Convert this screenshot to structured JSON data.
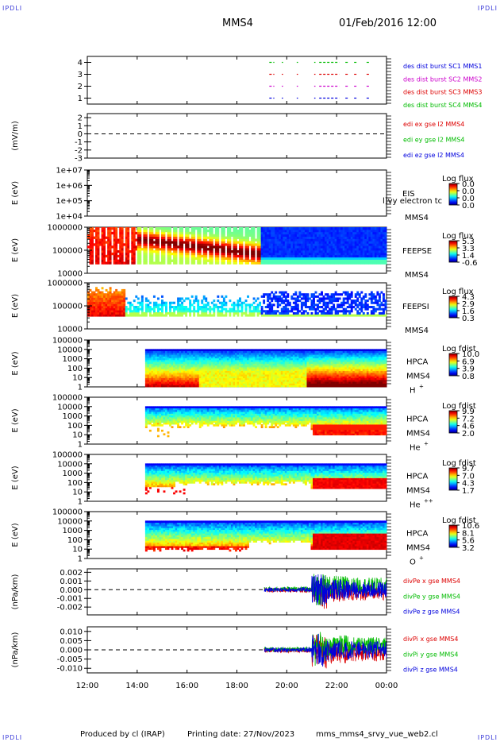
{
  "header": {
    "corner_label": "IPDLI",
    "spacecraft": "MMS4",
    "datetime": "01/Feb/2016 12:00"
  },
  "footer": {
    "produced_by": "Produced by cl (IRAP)",
    "printing_date": "Printing date: 27/Nov/2023",
    "file": "mms_mms4_srvy_vue_web2.cl"
  },
  "colors": {
    "blue": "#0000dd",
    "magenta": "#cc00cc",
    "red": "#dd0000",
    "green": "#00bb00",
    "text_blue": "#1515c8"
  },
  "x_axis": {
    "range_hours": [
      12,
      24
    ],
    "ticks": [
      12,
      14,
      16,
      18,
      20,
      22,
      24
    ],
    "tick_labels": [
      "12:00",
      "14:00",
      "16:00",
      "18:00",
      "20:00",
      "22:00",
      "00:00"
    ]
  },
  "chart_data": [
    {
      "type": "line",
      "panel": "burst",
      "y_ticks": [
        1,
        2,
        3,
        4
      ],
      "ylim": [
        0.5,
        4.5
      ],
      "legend": [
        {
          "label": "des dist burst SC1 MMS1",
          "color": "#0000dd"
        },
        {
          "label": "des dist burst SC2 MMS2",
          "color": "#cc00cc"
        },
        {
          "label": "des dist burst SC3 MMS3",
          "color": "#dd0000"
        },
        {
          "label": "des dist burst SC4 MMS4",
          "color": "#00bb00"
        }
      ],
      "series": [
        {
          "level": 4,
          "color": "#00bb00",
          "intervals": [
            [
              19.3,
              19.5
            ],
            [
              19.8,
              19.85
            ],
            [
              20.4,
              20.45
            ],
            [
              21.1,
              21.15
            ],
            [
              21.3,
              22.1
            ],
            [
              22.35,
              22.45
            ],
            [
              22.7,
              22.8
            ],
            [
              23.2,
              23.3
            ]
          ]
        },
        {
          "level": 3,
          "color": "#dd0000",
          "intervals": [
            [
              19.3,
              19.5
            ],
            [
              19.8,
              19.85
            ],
            [
              20.4,
              20.45
            ],
            [
              21.1,
              21.15
            ],
            [
              21.3,
              22.1
            ],
            [
              22.35,
              22.45
            ],
            [
              22.7,
              22.8
            ],
            [
              23.2,
              23.3
            ]
          ]
        },
        {
          "level": 2,
          "color": "#cc00cc",
          "intervals": [
            [
              19.3,
              19.5
            ],
            [
              19.8,
              19.85
            ],
            [
              20.4,
              20.45
            ],
            [
              21.1,
              21.15
            ],
            [
              21.3,
              22.1
            ],
            [
              22.35,
              22.45
            ],
            [
              22.7,
              22.8
            ],
            [
              23.2,
              23.3
            ]
          ]
        },
        {
          "level": 1,
          "color": "#0000dd",
          "intervals": [
            [
              19.3,
              19.5
            ],
            [
              19.8,
              19.85
            ],
            [
              20.4,
              20.45
            ],
            [
              21.1,
              21.15
            ],
            [
              21.3,
              22.1
            ],
            [
              22.35,
              22.45
            ],
            [
              22.7,
              22.8
            ],
            [
              23.2,
              23.3
            ]
          ]
        }
      ]
    },
    {
      "type": "line",
      "panel": "edi",
      "ylabel": "(mV/m)",
      "y_ticks": [
        -3,
        -2,
        -1,
        0,
        1,
        2
      ],
      "ylim": [
        -3,
        2.5
      ],
      "dashed_zero": true,
      "legend": [
        {
          "label": "edi ex gse l2 MMS4",
          "color": "#dd0000"
        },
        {
          "label": "edi ey gse l2 MMS4",
          "color": "#00bb00"
        },
        {
          "label": "edi ez gse l2 MMS4",
          "color": "#0000dd"
        }
      ]
    },
    {
      "type": "heatmap",
      "panel": "eis",
      "ylabel": "E (eV)",
      "y_tick_labels": [
        "1e+04",
        "1e+05",
        "1e+06",
        "1e+07"
      ],
      "ylim_log": [
        4,
        7
      ],
      "instrument": "EIS",
      "instrument2": "MMS4",
      "overlay_text": "l]vy electron tc",
      "colorbar_title": "Log flux",
      "colorbar_ticks": [
        "0.0",
        "0.0",
        "0.0",
        "0.0"
      ]
    },
    {
      "type": "heatmap",
      "panel": "feepse",
      "ylabel": "E (eV)",
      "y_tick_labels": [
        "10000",
        "100000",
        "1000000"
      ],
      "ylim_log": [
        4,
        6
      ],
      "instrument": "FEEPSE",
      "instrument2": "MMS4",
      "colorbar_title": "Log flux",
      "colorbar_ticks": [
        "5.3",
        "3.3",
        "1.4",
        "-0.6"
      ]
    },
    {
      "type": "heatmap",
      "panel": "feepsi",
      "ylabel": "E (eV)",
      "y_tick_labels": [
        "10000",
        "100000",
        "1000000"
      ],
      "ylim_log": [
        4,
        6
      ],
      "instrument": "FEEPSI",
      "instrument2": "MMS4",
      "colorbar_title": "Log flux",
      "colorbar_ticks": [
        "4.3",
        "2.9",
        "1.6",
        "0.3"
      ]
    },
    {
      "type": "heatmap",
      "panel": "hpca_h",
      "ylabel": "E (eV)",
      "y_tick_labels": [
        "1",
        "10",
        "100",
        "1000",
        "10000",
        "100000"
      ],
      "ylim_log": [
        0,
        5
      ],
      "instrument": "HPCA",
      "instrument2": "MMS4",
      "species": "H",
      "species_sup": "+",
      "colorbar_title": "Log fdist",
      "colorbar_ticks": [
        "10.0",
        "6.9",
        "3.9",
        "0.8"
      ]
    },
    {
      "type": "heatmap",
      "panel": "hpca_he",
      "ylabel": "E (eV)",
      "y_tick_labels": [
        "1",
        "10",
        "100",
        "1000",
        "10000",
        "100000"
      ],
      "ylim_log": [
        0,
        5
      ],
      "instrument": "HPCA",
      "instrument2": "MMS4",
      "species": "He",
      "species_sup": "+",
      "colorbar_title": "Log fdist",
      "colorbar_ticks": [
        "9.9",
        "7.2",
        "4.6",
        "2.0"
      ]
    },
    {
      "type": "heatmap",
      "panel": "hpca_hepp",
      "ylabel": "E (eV)",
      "y_tick_labels": [
        "1",
        "10",
        "100",
        "1000",
        "10000",
        "100000"
      ],
      "ylim_log": [
        0,
        5
      ],
      "instrument": "HPCA",
      "instrument2": "MMS4",
      "species": "He",
      "species_sup": "++",
      "colorbar_title": "Log fdist",
      "colorbar_ticks": [
        "9.7",
        "7.0",
        "4.3",
        "1.7"
      ]
    },
    {
      "type": "heatmap",
      "panel": "hpca_o",
      "ylabel": "E (eV)",
      "y_tick_labels": [
        "1",
        "10",
        "100",
        "1000",
        "10000",
        "100000"
      ],
      "ylim_log": [
        0,
        5
      ],
      "instrument": "HPCA",
      "instrument2": "MMS4",
      "species": "O",
      "species_sup": "+",
      "colorbar_title": "Log fdist",
      "colorbar_ticks": [
        "10.6",
        "8.1",
        "5.6",
        "3.2"
      ]
    },
    {
      "type": "line",
      "panel": "dpe",
      "ylabel": "(nPa/km)",
      "y_tick_labels": [
        "-0.002",
        "-0.001",
        "0.000",
        "0.001",
        "0.002"
      ],
      "y_ticks": [
        -0.002,
        -0.001,
        0,
        0.001,
        0.002
      ],
      "ylim": [
        -0.0029,
        0.0024
      ],
      "dashed_zero": true,
      "legend": [
        {
          "label": "divPe x gse MMS4",
          "color": "#dd0000"
        },
        {
          "label": "divPe y gse MMS4",
          "color": "#00bb00"
        },
        {
          "label": "divPe z gse MMS4",
          "color": "#0000dd"
        }
      ]
    },
    {
      "type": "line",
      "panel": "dpi",
      "ylabel": "(nPa/km)",
      "y_tick_labels": [
        "-0.010",
        "-0.005",
        "0.000",
        "0.005",
        "0.010"
      ],
      "y_ticks": [
        -0.01,
        -0.005,
        0,
        0.005,
        0.01
      ],
      "ylim": [
        -0.0125,
        0.0125
      ],
      "dashed_zero": true,
      "legend": [
        {
          "label": "divPi x gse MMS4",
          "color": "#dd0000"
        },
        {
          "label": "divPi y gse MMS4",
          "color": "#00bb00"
        },
        {
          "label": "divPi z gse MMS4",
          "color": "#0000dd"
        }
      ]
    }
  ]
}
